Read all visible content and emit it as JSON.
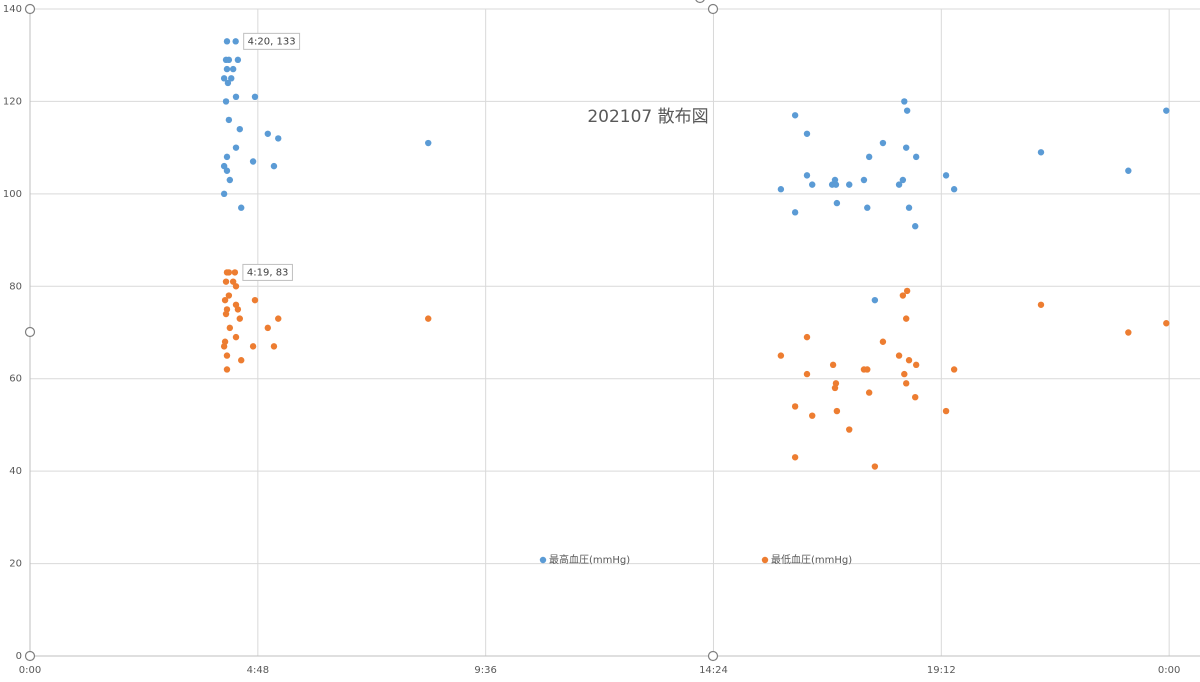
{
  "chart_data": {
    "type": "scatter",
    "title": "202107 散布図",
    "xlim": [
      0,
      24.65
    ],
    "xticks": [
      {
        "value": 0,
        "label": "0:00"
      },
      {
        "value": 4.8,
        "label": "4:48"
      },
      {
        "value": 9.6,
        "label": "9:36"
      },
      {
        "value": 14.4,
        "label": "14:24"
      },
      {
        "value": 19.2,
        "label": "19:12"
      },
      {
        "value": 24,
        "label": "0:00"
      }
    ],
    "ylim": [
      0,
      140
    ],
    "yticks": [
      0,
      20,
      40,
      60,
      80,
      100,
      120,
      140
    ],
    "grid": true,
    "legend": "bottom",
    "series": [
      {
        "name": "最高血圧(mmHg)",
        "color": "#5b9bd5",
        "x": [
          4.15,
          4.3333,
          4.13,
          4.19,
          4.38,
          4.15,
          4.28,
          4.09,
          4.24,
          4.17,
          4.34,
          4.74,
          4.13,
          4.19,
          4.42,
          5.01,
          5.23,
          8.39,
          4.34,
          4.15,
          4.7,
          4.09,
          5.14,
          4.15,
          4.21,
          4.09,
          4.45,
          16.12,
          16.37,
          17.97,
          18.42,
          18.48,
          18.46,
          17.68,
          18.67,
          21.3,
          23.14,
          23.94,
          16.37,
          19.3,
          16.96,
          17.57,
          18.39,
          16.48,
          16.9,
          16.98,
          17.26,
          18.31,
          15.82,
          19.47,
          17.0,
          17.64,
          18.52,
          16.12,
          18.65,
          17.8
        ],
        "values": [
          133,
          133,
          129,
          129,
          129,
          127,
          127,
          125,
          125,
          124,
          121,
          121,
          120,
          116,
          114,
          113,
          112,
          111,
          110,
          108,
          107,
          106,
          106,
          105,
          103,
          100,
          97,
          117,
          113,
          111,
          120,
          118,
          110,
          108,
          108,
          109,
          105,
          118,
          104,
          104,
          103,
          103,
          103,
          102,
          102,
          102,
          102,
          102,
          101,
          101,
          98,
          97,
          97,
          96,
          93,
          77
        ]
      },
      {
        "name": "最低血圧(mmHg)",
        "color": "#ed7d31",
        "x": [
          4.15,
          4.3167,
          4.19,
          4.13,
          4.28,
          4.34,
          4.11,
          4.19,
          4.74,
          4.34,
          4.15,
          4.38,
          4.13,
          4.42,
          5.23,
          8.39,
          4.21,
          5.01,
          4.34,
          4.11,
          4.09,
          4.7,
          5.14,
          4.15,
          4.45,
          4.15,
          15.82,
          16.37,
          16.37,
          16.12,
          16.48,
          16.12,
          16.92,
          16.98,
          16.96,
          17.0,
          17.26,
          17.57,
          17.64,
          17.68,
          17.8,
          17.97,
          18.31,
          18.48,
          18.39,
          18.46,
          18.52,
          18.67,
          18.42,
          18.46,
          18.65,
          19.3,
          19.47,
          21.3,
          23.14,
          23.94
        ],
        "values": [
          83,
          83,
          83,
          81,
          81,
          80,
          77,
          78,
          77,
          76,
          75,
          75,
          74,
          73,
          73,
          73,
          71,
          71,
          69,
          68,
          67,
          67,
          67,
          65,
          64,
          62,
          65,
          69,
          61,
          54,
          52,
          43,
          63,
          59,
          58,
          53,
          49,
          62,
          62,
          57,
          41,
          68,
          65,
          79,
          78,
          73,
          64,
          63,
          61,
          59,
          56,
          53,
          62,
          76,
          70,
          72
        ]
      }
    ],
    "annotations": [
      {
        "text": "4:20, 133",
        "x": 4.3333,
        "y": 133
      },
      {
        "text": "4:19, 83",
        "x": 4.3167,
        "y": 83
      }
    ]
  }
}
